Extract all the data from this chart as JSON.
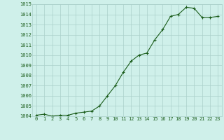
{
  "x": [
    0,
    1,
    2,
    3,
    4,
    5,
    6,
    7,
    8,
    9,
    10,
    11,
    12,
    13,
    14,
    15,
    16,
    17,
    18,
    19,
    20,
    21,
    22,
    23
  ],
  "y": [
    1004.1,
    1004.2,
    1004.0,
    1004.1,
    1004.1,
    1004.3,
    1004.4,
    1004.5,
    1005.0,
    1006.0,
    1007.0,
    1008.3,
    1009.4,
    1010.0,
    1010.2,
    1011.5,
    1012.5,
    1013.8,
    1014.0,
    1014.7,
    1014.6,
    1013.7,
    1013.7,
    1013.8
  ],
  "line_color": "#1a5c1a",
  "marker": "+",
  "marker_size": 3,
  "linewidth": 0.8,
  "bg_color": "#cff0ea",
  "grid_color": "#aacfca",
  "ylim": [
    1004,
    1015
  ],
  "yticks": [
    1004,
    1005,
    1006,
    1007,
    1008,
    1009,
    1010,
    1011,
    1012,
    1013,
    1014,
    1015
  ],
  "xlim": [
    -0.5,
    23.5
  ],
  "xtick_labels": [
    "0",
    "1",
    "2",
    "3",
    "4",
    "5",
    "6",
    "7",
    "8",
    "9",
    "10",
    "11",
    "12",
    "13",
    "14",
    "15",
    "16",
    "17",
    "18",
    "19",
    "20",
    "21",
    "22",
    "23"
  ],
  "xlabel_fontsize": 6.5,
  "tick_fontsize": 5.0
}
